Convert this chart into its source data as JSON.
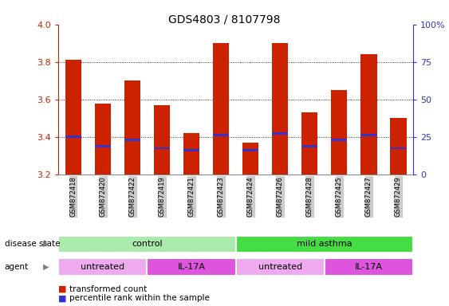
{
  "title": "GDS4803 / 8107798",
  "samples": [
    "GSM872418",
    "GSM872420",
    "GSM872422",
    "GSM872419",
    "GSM872421",
    "GSM872423",
    "GSM872424",
    "GSM872426",
    "GSM872428",
    "GSM872425",
    "GSM872427",
    "GSM872429"
  ],
  "bar_tops": [
    3.81,
    3.58,
    3.7,
    3.57,
    3.42,
    3.9,
    3.37,
    3.9,
    3.53,
    3.65,
    3.84,
    3.5
  ],
  "bar_bottom": 3.2,
  "percentile_vals": [
    3.4,
    3.35,
    3.385,
    3.34,
    3.33,
    3.41,
    3.33,
    3.42,
    3.35,
    3.385,
    3.41,
    3.34
  ],
  "ylim": [
    3.2,
    4.0
  ],
  "yticks": [
    3.2,
    3.4,
    3.6,
    3.8,
    4.0
  ],
  "right_yticks": [
    0,
    25,
    50,
    75,
    100
  ],
  "right_ytick_labels": [
    "0",
    "25",
    "50",
    "75",
    "100%"
  ],
  "bar_color": "#cc2200",
  "percentile_color": "#3333cc",
  "grid_color": "#000000",
  "disease_state_groups": [
    {
      "label": "control",
      "start": 0,
      "end": 6,
      "color": "#aaeaaa"
    },
    {
      "label": "mild asthma",
      "start": 6,
      "end": 12,
      "color": "#44dd44"
    }
  ],
  "agent_groups": [
    {
      "label": "untreated",
      "start": 0,
      "end": 3,
      "color": "#eeaaee"
    },
    {
      "label": "IL-17A",
      "start": 3,
      "end": 6,
      "color": "#dd55dd"
    },
    {
      "label": "untreated",
      "start": 6,
      "end": 9,
      "color": "#eeaaee"
    },
    {
      "label": "IL-17A",
      "start": 9,
      "end": 12,
      "color": "#dd55dd"
    }
  ],
  "legend_items": [
    {
      "label": "transformed count",
      "color": "#cc2200"
    },
    {
      "label": "percentile rank within the sample",
      "color": "#3333cc"
    }
  ],
  "left_ylabel_color": "#cc2200",
  "right_ylabel_color": "#3333cc",
  "tick_label_bg": "#cccccc",
  "label_fontsize": 7.5,
  "bar_width": 0.55
}
